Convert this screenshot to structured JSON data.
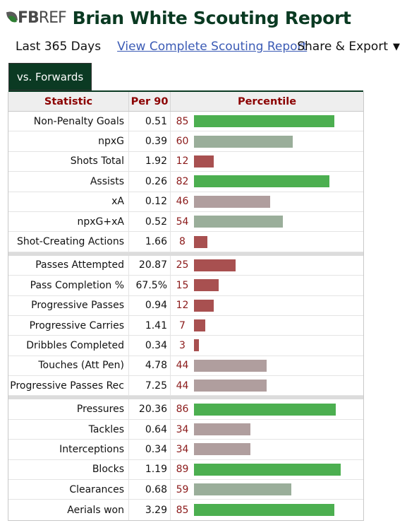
{
  "header": {
    "logo_fb": "FB",
    "logo_ref": "REF",
    "title": "Brian White Scouting Report"
  },
  "toolbar": {
    "range": "Last 365 Days",
    "full_report_link": "View Complete Scouting Report",
    "share_export": "Share & Export",
    "caret": "▼"
  },
  "tab": {
    "label": "vs. Forwards"
  },
  "table": {
    "columns": [
      "Statistic",
      "Per 90",
      "Percentile"
    ],
    "colors": {
      "high": "#4caf50",
      "mid_high": "#9aae9a",
      "mid_low": "#b09e9e",
      "low": "#a85050"
    },
    "sections": [
      {
        "rows": [
          {
            "stat": "Non-Penalty Goals",
            "per90": "0.51",
            "percentile": 85
          },
          {
            "stat": "npxG",
            "per90": "0.39",
            "percentile": 60
          },
          {
            "stat": "Shots Total",
            "per90": "1.92",
            "percentile": 12
          },
          {
            "stat": "Assists",
            "per90": "0.26",
            "percentile": 82
          },
          {
            "stat": "xA",
            "per90": "0.12",
            "percentile": 46
          },
          {
            "stat": "npxG+xA",
            "per90": "0.52",
            "percentile": 54
          },
          {
            "stat": "Shot-Creating Actions",
            "per90": "1.66",
            "percentile": 8
          }
        ]
      },
      {
        "rows": [
          {
            "stat": "Passes Attempted",
            "per90": "20.87",
            "percentile": 25
          },
          {
            "stat": "Pass Completion %",
            "per90": "67.5%",
            "percentile": 15
          },
          {
            "stat": "Progressive Passes",
            "per90": "0.94",
            "percentile": 12
          },
          {
            "stat": "Progressive Carries",
            "per90": "1.41",
            "percentile": 7
          },
          {
            "stat": "Dribbles Completed",
            "per90": "0.34",
            "percentile": 3
          },
          {
            "stat": "Touches (Att Pen)",
            "per90": "4.78",
            "percentile": 44
          },
          {
            "stat": "Progressive Passes Rec",
            "per90": "7.25",
            "percentile": 44
          }
        ]
      },
      {
        "rows": [
          {
            "stat": "Pressures",
            "per90": "20.36",
            "percentile": 86
          },
          {
            "stat": "Tackles",
            "per90": "0.64",
            "percentile": 34
          },
          {
            "stat": "Interceptions",
            "per90": "0.34",
            "percentile": 34
          },
          {
            "stat": "Blocks",
            "per90": "1.19",
            "percentile": 89
          },
          {
            "stat": "Clearances",
            "per90": "0.68",
            "percentile": 59
          },
          {
            "stat": "Aerials won",
            "per90": "3.29",
            "percentile": 85
          }
        ]
      }
    ]
  }
}
